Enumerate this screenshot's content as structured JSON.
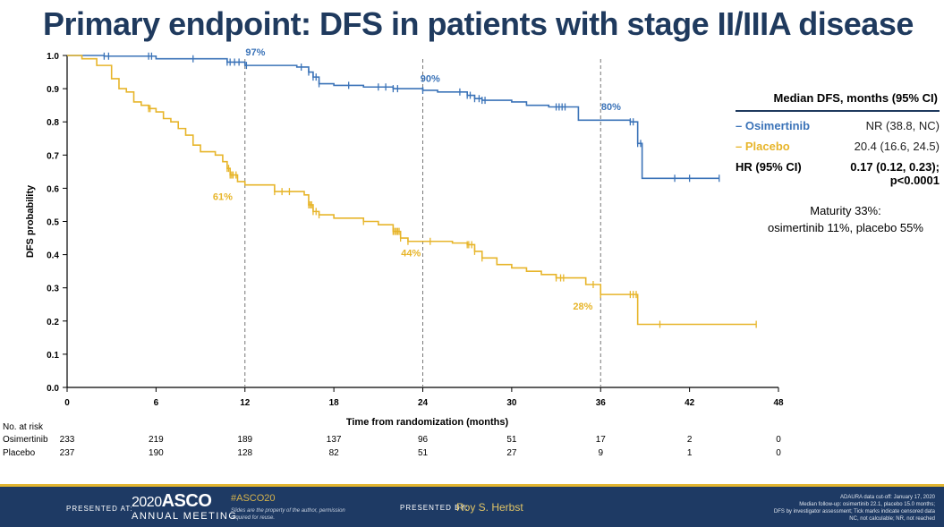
{
  "title": "Primary endpoint: DFS in patients with stage II/IIIA disease",
  "chart_data": {
    "type": "line",
    "subtype": "kaplan-meier",
    "xlabel": "Time from randomization (months)",
    "ylabel": "DFS probability",
    "xlim": [
      0,
      48
    ],
    "ylim": [
      0,
      1
    ],
    "x_ticks": [
      "0",
      "6",
      "12",
      "18",
      "24",
      "30",
      "36",
      "42",
      "48"
    ],
    "y_ticks": [
      "0.0",
      "0.1",
      "0.2",
      "0.3",
      "0.4",
      "0.5",
      "0.6",
      "0.7",
      "0.8",
      "0.9",
      "1.0"
    ],
    "grid": false,
    "reference_lines_x": [
      12,
      24,
      36
    ],
    "colors": {
      "osimertinib": "#3b73b8",
      "placebo": "#e7b52a"
    },
    "series": [
      {
        "name": "Osimertinib",
        "color": "#3b73b8",
        "x": [
          0,
          2.5,
          6,
          9,
          10.8,
          12,
          15.5,
          16.3,
          16.6,
          17,
          18,
          20,
          22,
          24,
          25,
          27,
          27.5,
          28,
          30,
          31,
          32.5,
          34.5,
          38,
          38.5,
          38.8,
          44
        ],
        "y": [
          1.0,
          0.998,
          0.99,
          0.99,
          0.98,
          0.97,
          0.965,
          0.95,
          0.935,
          0.915,
          0.91,
          0.905,
          0.9,
          0.895,
          0.89,
          0.88,
          0.87,
          0.865,
          0.86,
          0.85,
          0.845,
          0.805,
          0.8,
          0.735,
          0.63,
          0.63
        ],
        "censor_x": [
          2.5,
          2.8,
          5.5,
          5.7,
          8.5,
          10.8,
          11,
          11.3,
          11.6,
          12.1,
          15.8,
          16.3,
          16.6,
          16.8,
          17,
          19,
          21,
          21.5,
          22,
          22.3,
          24,
          26.5,
          27,
          27.2,
          27.5,
          27.8,
          28,
          28.2,
          33,
          33.2,
          33.4,
          33.6,
          38,
          38.2,
          38.5,
          38.7,
          41,
          42,
          44
        ]
      },
      {
        "name": "Placebo",
        "color": "#e7b52a",
        "x": [
          0,
          1,
          2,
          3,
          3.5,
          4,
          4.5,
          5,
          5.5,
          6,
          6.5,
          7,
          7.5,
          8,
          8.5,
          9,
          10,
          10.5,
          10.8,
          11,
          11.5,
          12,
          14,
          16,
          16.3,
          16.6,
          17,
          18,
          20,
          21,
          22,
          22.5,
          23,
          24,
          26,
          27,
          27.5,
          28,
          29,
          30,
          31,
          32,
          33,
          35,
          36,
          38,
          38.5,
          46.5
        ],
        "y": [
          1.0,
          0.99,
          0.97,
          0.93,
          0.9,
          0.89,
          0.86,
          0.85,
          0.84,
          0.83,
          0.81,
          0.8,
          0.78,
          0.76,
          0.73,
          0.71,
          0.7,
          0.68,
          0.66,
          0.64,
          0.62,
          0.61,
          0.59,
          0.58,
          0.55,
          0.53,
          0.52,
          0.51,
          0.5,
          0.49,
          0.47,
          0.45,
          0.44,
          0.44,
          0.435,
          0.43,
          0.41,
          0.39,
          0.37,
          0.36,
          0.35,
          0.34,
          0.33,
          0.31,
          0.28,
          0.28,
          0.19,
          0.19
        ],
        "censor_x": [
          5.5,
          5.6,
          10.8,
          10.9,
          11,
          11.1,
          11.2,
          11.4,
          14,
          14.5,
          15,
          16.3,
          16.4,
          16.5,
          16.6,
          16.8,
          17,
          20,
          22,
          22.1,
          22.2,
          22.3,
          22.4,
          22.5,
          23,
          24.5,
          27,
          27.1,
          27.3,
          27.5,
          28,
          33,
          33.3,
          33.5,
          35.5,
          36,
          38,
          38.2,
          38.4,
          40,
          46.5
        ]
      }
    ],
    "annotations": [
      {
        "text": "97%",
        "x": 12.7,
        "y": 1.0,
        "series": "osimertinib"
      },
      {
        "text": "90%",
        "x": 24.5,
        "y": 0.92,
        "series": "osimertinib"
      },
      {
        "text": "80%",
        "x": 36.7,
        "y": 0.835,
        "series": "osimertinib"
      },
      {
        "text": "61%",
        "x": 10.5,
        "y": 0.565,
        "series": "placebo"
      },
      {
        "text": "44%",
        "x": 23.2,
        "y": 0.395,
        "series": "placebo"
      },
      {
        "text": "28%",
        "x": 34.8,
        "y": 0.235,
        "series": "placebo"
      }
    ]
  },
  "legend": {
    "header": "Median DFS, months (95% CI)",
    "rows": [
      {
        "label": "– Osimertinib",
        "value": "NR (38.8, NC)",
        "color": "#3b73b8"
      },
      {
        "label": "– Placebo",
        "value": "20.4 (16.6, 24.5)",
        "color": "#e7b52a"
      },
      {
        "label": "HR (95% CI)",
        "value": "0.17 (0.12, 0.23);",
        "value2": "p<0.0001"
      }
    ]
  },
  "maturity": {
    "line1": "Maturity 33%:",
    "line2": "osimertinib 11%, placebo 55%"
  },
  "risk_table": {
    "header": "No. at risk",
    "rows": [
      {
        "name": "Osimertinib",
        "values": [
          "233",
          "219",
          "189",
          "137",
          "96",
          "51",
          "17",
          "2",
          "0"
        ]
      },
      {
        "name": "Placebo",
        "values": [
          "237",
          "190",
          "128",
          "82",
          "51",
          "27",
          "9",
          "1",
          "0"
        ]
      }
    ]
  },
  "footer": {
    "presented_at": "PRESENTED AT:",
    "logo_year": "2020",
    "logo_text": "ASCO",
    "meeting": "ANNUAL MEETING",
    "hashtag": "#ASCO20",
    "slides_note": "Slides are the property of the author, permission required for reuse.",
    "presented_by": "PRESENTED BY:",
    "presenter": "Roy S. Herbst",
    "notes": [
      "ADAURA data cut-off: January 17, 2020",
      "Median follow-up: osimertinib 22.1, placebo 15.0 months;",
      "DFS by investigator assessment; Tick marks indicate censored data",
      "NC, not calculable; NR, not reached"
    ]
  }
}
